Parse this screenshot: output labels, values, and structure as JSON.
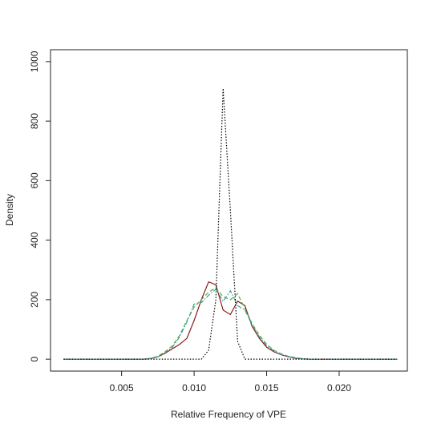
{
  "chart_data": {
    "type": "line",
    "x_label": "Relative Frequency of VPE",
    "y_label": "Density",
    "x": [
      0.001,
      0.0015,
      0.002,
      0.0025,
      0.003,
      0.0035,
      0.004,
      0.0045,
      0.005,
      0.0055,
      0.006,
      0.0065,
      0.007,
      0.0075,
      0.008,
      0.0085,
      0.009,
      0.0095,
      0.01,
      0.0105,
      0.011,
      0.0115,
      0.012,
      0.0125,
      0.013,
      0.0135,
      0.014,
      0.0145,
      0.015,
      0.0155,
      0.016,
      0.0165,
      0.017,
      0.0175,
      0.018,
      0.0185,
      0.019,
      0.0195,
      0.02,
      0.0205,
      0.021,
      0.0215,
      0.022,
      0.0225,
      0.023,
      0.0235,
      0.024
    ],
    "series": [
      {
        "color": "#8b1a1a",
        "dash": "solid",
        "values": [
          0,
          0,
          0,
          0,
          0,
          0,
          0,
          0,
          0,
          0,
          0,
          0,
          2,
          8,
          20,
          35,
          50,
          70,
          130,
          200,
          260,
          250,
          165,
          150,
          195,
          180,
          110,
          70,
          40,
          25,
          15,
          8,
          3,
          1,
          0,
          0,
          0,
          0,
          0,
          0,
          0,
          0,
          0,
          0,
          0,
          0,
          0
        ]
      },
      {
        "color": "#66aa44",
        "dash": "dashed",
        "values": [
          0,
          0,
          0,
          0,
          0,
          0,
          0,
          0,
          0,
          0,
          0,
          0,
          3,
          10,
          25,
          45,
          80,
          130,
          175,
          200,
          225,
          240,
          210,
          200,
          220,
          170,
          120,
          80,
          50,
          30,
          18,
          10,
          5,
          2,
          0,
          0,
          0,
          0,
          0,
          0,
          0,
          0,
          0,
          0,
          0,
          0,
          0
        ]
      },
      {
        "color": "#3aa0a0",
        "dash": "dashdot",
        "values": [
          0,
          0,
          0,
          0,
          0,
          0,
          0,
          0,
          0,
          0,
          0,
          0,
          2,
          8,
          22,
          40,
          75,
          125,
          185,
          190,
          215,
          235,
          195,
          230,
          180,
          165,
          115,
          75,
          45,
          28,
          16,
          9,
          4,
          1,
          0,
          0,
          0,
          0,
          0,
          0,
          0,
          0,
          0,
          0,
          0,
          0,
          0
        ]
      },
      {
        "color": "#000000",
        "dash": "dotted",
        "values": [
          0,
          0,
          0,
          0,
          0,
          0,
          0,
          0,
          0,
          0,
          0,
          0,
          0,
          0,
          0,
          0,
          0,
          0,
          0,
          0,
          30,
          200,
          910,
          500,
          60,
          0,
          0,
          0,
          0,
          0,
          0,
          0,
          0,
          0,
          0,
          0,
          0,
          0,
          0,
          0,
          0,
          0,
          0,
          0,
          0,
          0,
          0
        ]
      }
    ],
    "xlim": [
      0.0001,
      0.0247
    ],
    "ylim": [
      -40,
      1040
    ],
    "xticks": [
      0.005,
      {
        "value": 0.01,
        "label": "0.010"
      },
      0.015,
      {
        "value": 0.02,
        "label": "0.020"
      }
    ],
    "yticks": [
      0,
      200,
      400,
      600,
      800,
      1000
    ]
  }
}
